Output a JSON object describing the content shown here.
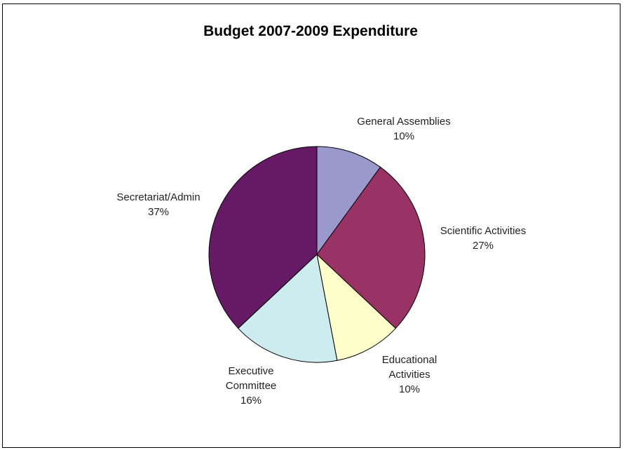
{
  "chart_data": {
    "type": "pie",
    "title": "Budget 2007-2009 Expenditure",
    "slices": [
      {
        "label_lines": [
          "General Assemblies"
        ],
        "percent_label": "10%",
        "value": 10,
        "color": "#9999cc"
      },
      {
        "label_lines": [
          "Scientific Activities"
        ],
        "percent_label": "27%",
        "value": 27,
        "color": "#993366"
      },
      {
        "label_lines": [
          "Educational",
          "Activities"
        ],
        "percent_label": "10%",
        "value": 10,
        "color": "#ffffcc"
      },
      {
        "label_lines": [
          "Executive",
          "Committee"
        ],
        "percent_label": "16%",
        "value": 16,
        "color": "#ccecf0"
      },
      {
        "label_lines": [
          "Secretariat/Admin"
        ],
        "percent_label": "37%",
        "value": 37,
        "color": "#661a66"
      }
    ]
  }
}
